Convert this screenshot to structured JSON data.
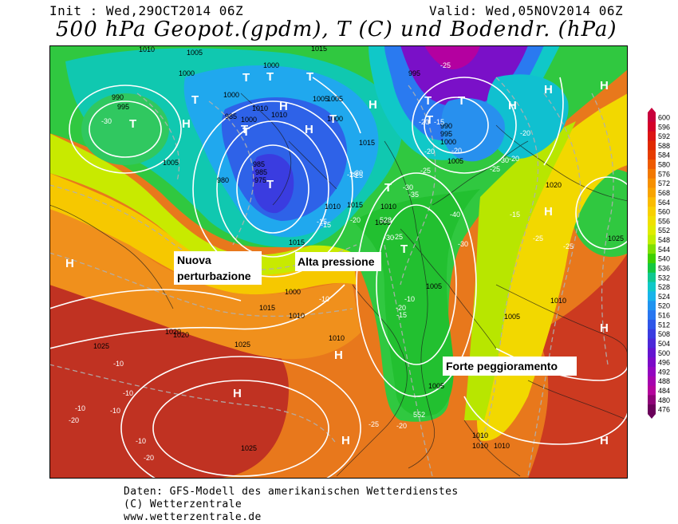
{
  "header": {
    "init": "Init : Wed,29OCT2014 06Z",
    "valid": "Valid: Wed,05NOV2014 06Z",
    "title": "500 hPa Geopot.(gpdm), T (C) und Bodendr. (hPa)"
  },
  "annotations": {
    "nuova_line1": "Nuova",
    "nuova_line2": "perturbazione",
    "alta": "Alta pressione",
    "forte": "Forte peggioramento"
  },
  "legend": {
    "values": [
      "600",
      "596",
      "592",
      "588",
      "584",
      "580",
      "576",
      "572",
      "568",
      "564",
      "560",
      "556",
      "552",
      "548",
      "544",
      "540",
      "536",
      "532",
      "528",
      "524",
      "520",
      "516",
      "512",
      "508",
      "504",
      "500",
      "496",
      "492",
      "488",
      "484",
      "480",
      "476"
    ],
    "colors": [
      "#c8003c",
      "#d40028",
      "#dc1414",
      "#e02800",
      "#e63c00",
      "#ee5a00",
      "#f27800",
      "#f69000",
      "#f8a400",
      "#fabc00",
      "#f8d000",
      "#f0e000",
      "#e0ec00",
      "#c0ee00",
      "#7ee000",
      "#3cd000",
      "#14c840",
      "#10c890",
      "#10c8c8",
      "#18b4ea",
      "#2094f0",
      "#2876f0",
      "#2e56e8",
      "#3a3ce0",
      "#4c28d8",
      "#6414d0",
      "#7c0ac8",
      "#9406c0",
      "#a604ae",
      "#b4049c",
      "#8e0278",
      "#6a005a"
    ]
  },
  "map": {
    "pressure_labels": [
      "1010",
      "1005",
      "1000",
      "1000",
      "995",
      "990",
      "1010",
      "1000",
      "985",
      "985",
      "975",
      "1010",
      "1000",
      "1005",
      "1005",
      "1015",
      "995",
      "985",
      "980",
      "990",
      "995",
      "1000",
      "1005",
      "1015",
      "1010",
      "1005",
      "1015",
      "1010",
      "1005",
      "1005",
      "1000",
      "1010",
      "1015",
      "1020",
      "1025",
      "1025",
      "1020",
      "1010",
      "1005",
      "1010",
      "1025",
      "1025",
      "1005",
      "1000",
      "1010",
      "1015",
      "1020",
      "1010",
      "1010"
    ],
    "temp_labels": [
      "-30",
      "-25",
      "-20",
      "-15",
      "-20",
      "-20",
      "-25",
      "-30",
      "-35",
      "-40",
      "-30",
      "-25",
      "-20",
      "-20",
      "-25",
      "-20",
      "-15",
      "-15",
      "-20",
      "-25",
      "-30",
      "-25",
      "-20",
      "-15",
      "-10",
      "-10",
      "-10",
      "-10",
      "-10",
      "-10",
      "-10",
      "-20",
      "-20",
      "-25",
      "-20",
      "-15",
      "-30",
      "-25",
      "-25"
    ],
    "geopot_labels": [
      "528",
      "552"
    ],
    "centers": [
      "T",
      "T",
      "T",
      "T",
      "T",
      "T",
      "T",
      "T",
      "T",
      "T",
      "T",
      "T",
      "T",
      "T",
      "H",
      "H",
      "H",
      "H",
      "H",
      "H",
      "H",
      "H",
      "H",
      "H",
      "H",
      "H",
      "H",
      "H"
    ]
  },
  "footer": {
    "line1": "Daten: GFS-Modell des amerikanischen Wetterdienstes",
    "line2": "(C) Wetterzentrale",
    "line3": "www.wetterzentrale.de"
  }
}
